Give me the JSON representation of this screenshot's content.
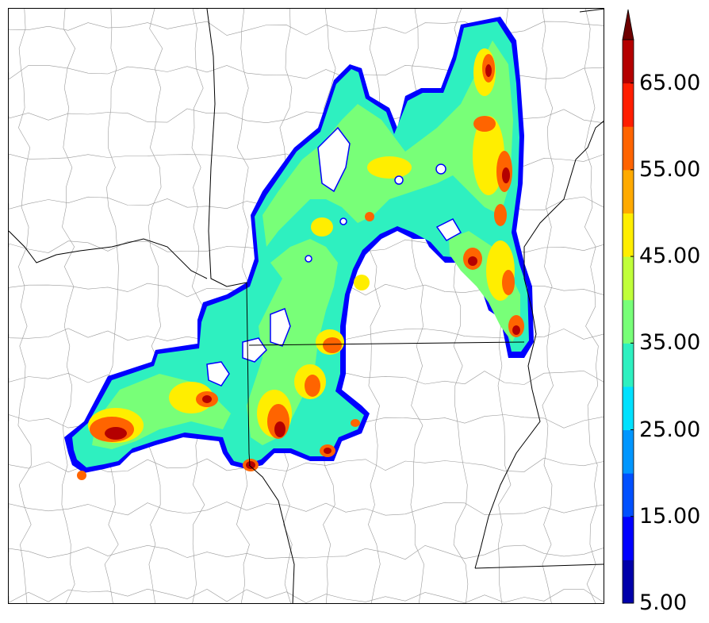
{
  "colorbar": {
    "levels": [
      5,
      10,
      15,
      20,
      25,
      30,
      35,
      40,
      45,
      50,
      55,
      60,
      65,
      70
    ],
    "colors": [
      "#0000aa",
      "#0000ff",
      "#0050ff",
      "#0096ff",
      "#00e1ff",
      "#2ef0c0",
      "#78ff78",
      "#c0ff3a",
      "#ffee00",
      "#ffaa00",
      "#ff6400",
      "#ff1e00",
      "#b40000"
    ],
    "extend_color": "#6e0000",
    "extend": "max",
    "tick_labels": [
      "5.00",
      "15.00",
      "25.00",
      "35.00",
      "45.00",
      "55.00",
      "65.00"
    ]
  },
  "basemap": {
    "boundary_color": "#000000",
    "county_color": "#9a9a9a",
    "background": "#ffffff"
  }
}
